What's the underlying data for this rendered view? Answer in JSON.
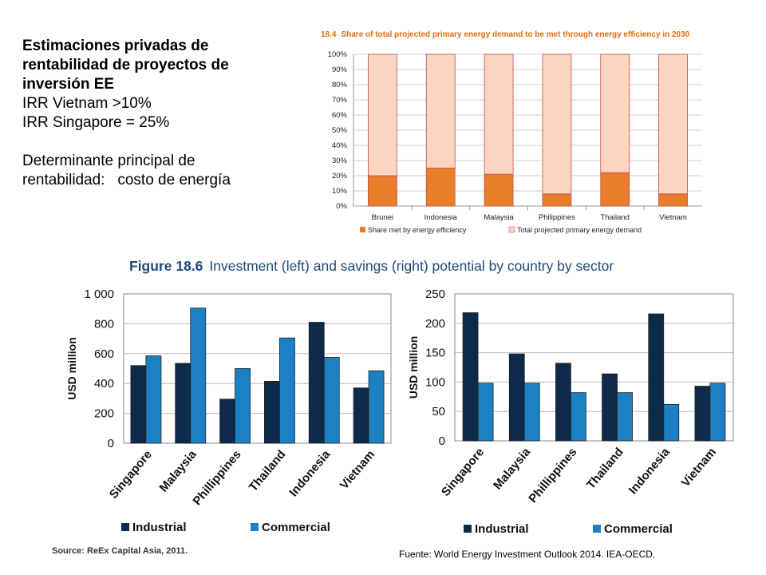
{
  "intro": {
    "heading_lines": [
      "Estimaciones privadas de",
      "rentabilidad de proyectos de",
      "inversión EE"
    ],
    "irr_vietnam": "IRR Vietnam >10%",
    "irr_singapore": "IRR Singapore = 25%",
    "determinant_lines": [
      "Determinante principal de",
      "rentabilidad:   costo de energía"
    ]
  },
  "figure_18_4": {
    "number": "18.4",
    "title": "Share of total projected primary energy demand to be met through energy efficiency in 2030"
  },
  "figure_18_6": {
    "number": "Figure 18.6",
    "title": "Investment (left) and savings (right) potential by country by sector"
  },
  "source_note": "Source: ReEx Capital Asia, 2011.",
  "fuente_note": "Fuente: World Energy Investment Outlook 2014. IEA-OECD.",
  "colors": {
    "efficiency": "#e87d2a",
    "total_demand": "#fbd5bf",
    "industrial": "#0d2a4a",
    "commercial": "#1c80c4",
    "title_orange": "#e36c0a",
    "title_blue": "#1f497d"
  },
  "chart_data": [
    {
      "type": "bar",
      "stacked": true,
      "categories": [
        "Brunei",
        "Indonesia",
        "Malaysia",
        "Philippines",
        "Thailand",
        "Vietnam"
      ],
      "series": [
        {
          "name": "Share met by energy efficiency",
          "values": [
            20,
            25,
            21,
            8,
            22,
            8
          ]
        },
        {
          "name": "Total projected primary energy demand",
          "values": [
            80,
            75,
            79,
            92,
            78,
            92
          ]
        }
      ],
      "yticks": [
        "0%",
        "10%",
        "20%",
        "30%",
        "40%",
        "50%",
        "60%",
        "70%",
        "80%",
        "90%",
        "100%"
      ],
      "ylim": [
        0,
        100
      ],
      "grid": true,
      "legend": "bottom"
    },
    {
      "type": "bar",
      "categories": [
        "Singapore",
        "Malaysia",
        "Phillippines",
        "Thailand",
        "Indonesia",
        "Vietnam"
      ],
      "series": [
        {
          "name": "Industrial",
          "values": [
            520,
            535,
            295,
            415,
            810,
            370
          ]
        },
        {
          "name": "Commercial",
          "values": [
            585,
            905,
            500,
            705,
            575,
            485
          ]
        }
      ],
      "ylabel": "USD million",
      "yticks": [
        "0",
        "200",
        "400",
        "600",
        "800",
        "1 000"
      ],
      "ylim": [
        0,
        1000
      ],
      "grid": true,
      "legend": "bottom"
    },
    {
      "type": "bar",
      "categories": [
        "Singapore",
        "Malaysia",
        "Phillippines",
        "Thailand",
        "Indonesia",
        "Vietnam"
      ],
      "series": [
        {
          "name": "Industrial",
          "values": [
            218,
            148,
            132,
            114,
            216,
            93
          ]
        },
        {
          "name": "Commercial",
          "values": [
            98,
            98,
            82,
            82,
            62,
            98
          ]
        }
      ],
      "ylabel": "USD million",
      "yticks": [
        "0",
        "50",
        "100",
        "150",
        "200",
        "250"
      ],
      "ylim": [
        0,
        250
      ],
      "grid": true,
      "legend": "bottom"
    }
  ]
}
